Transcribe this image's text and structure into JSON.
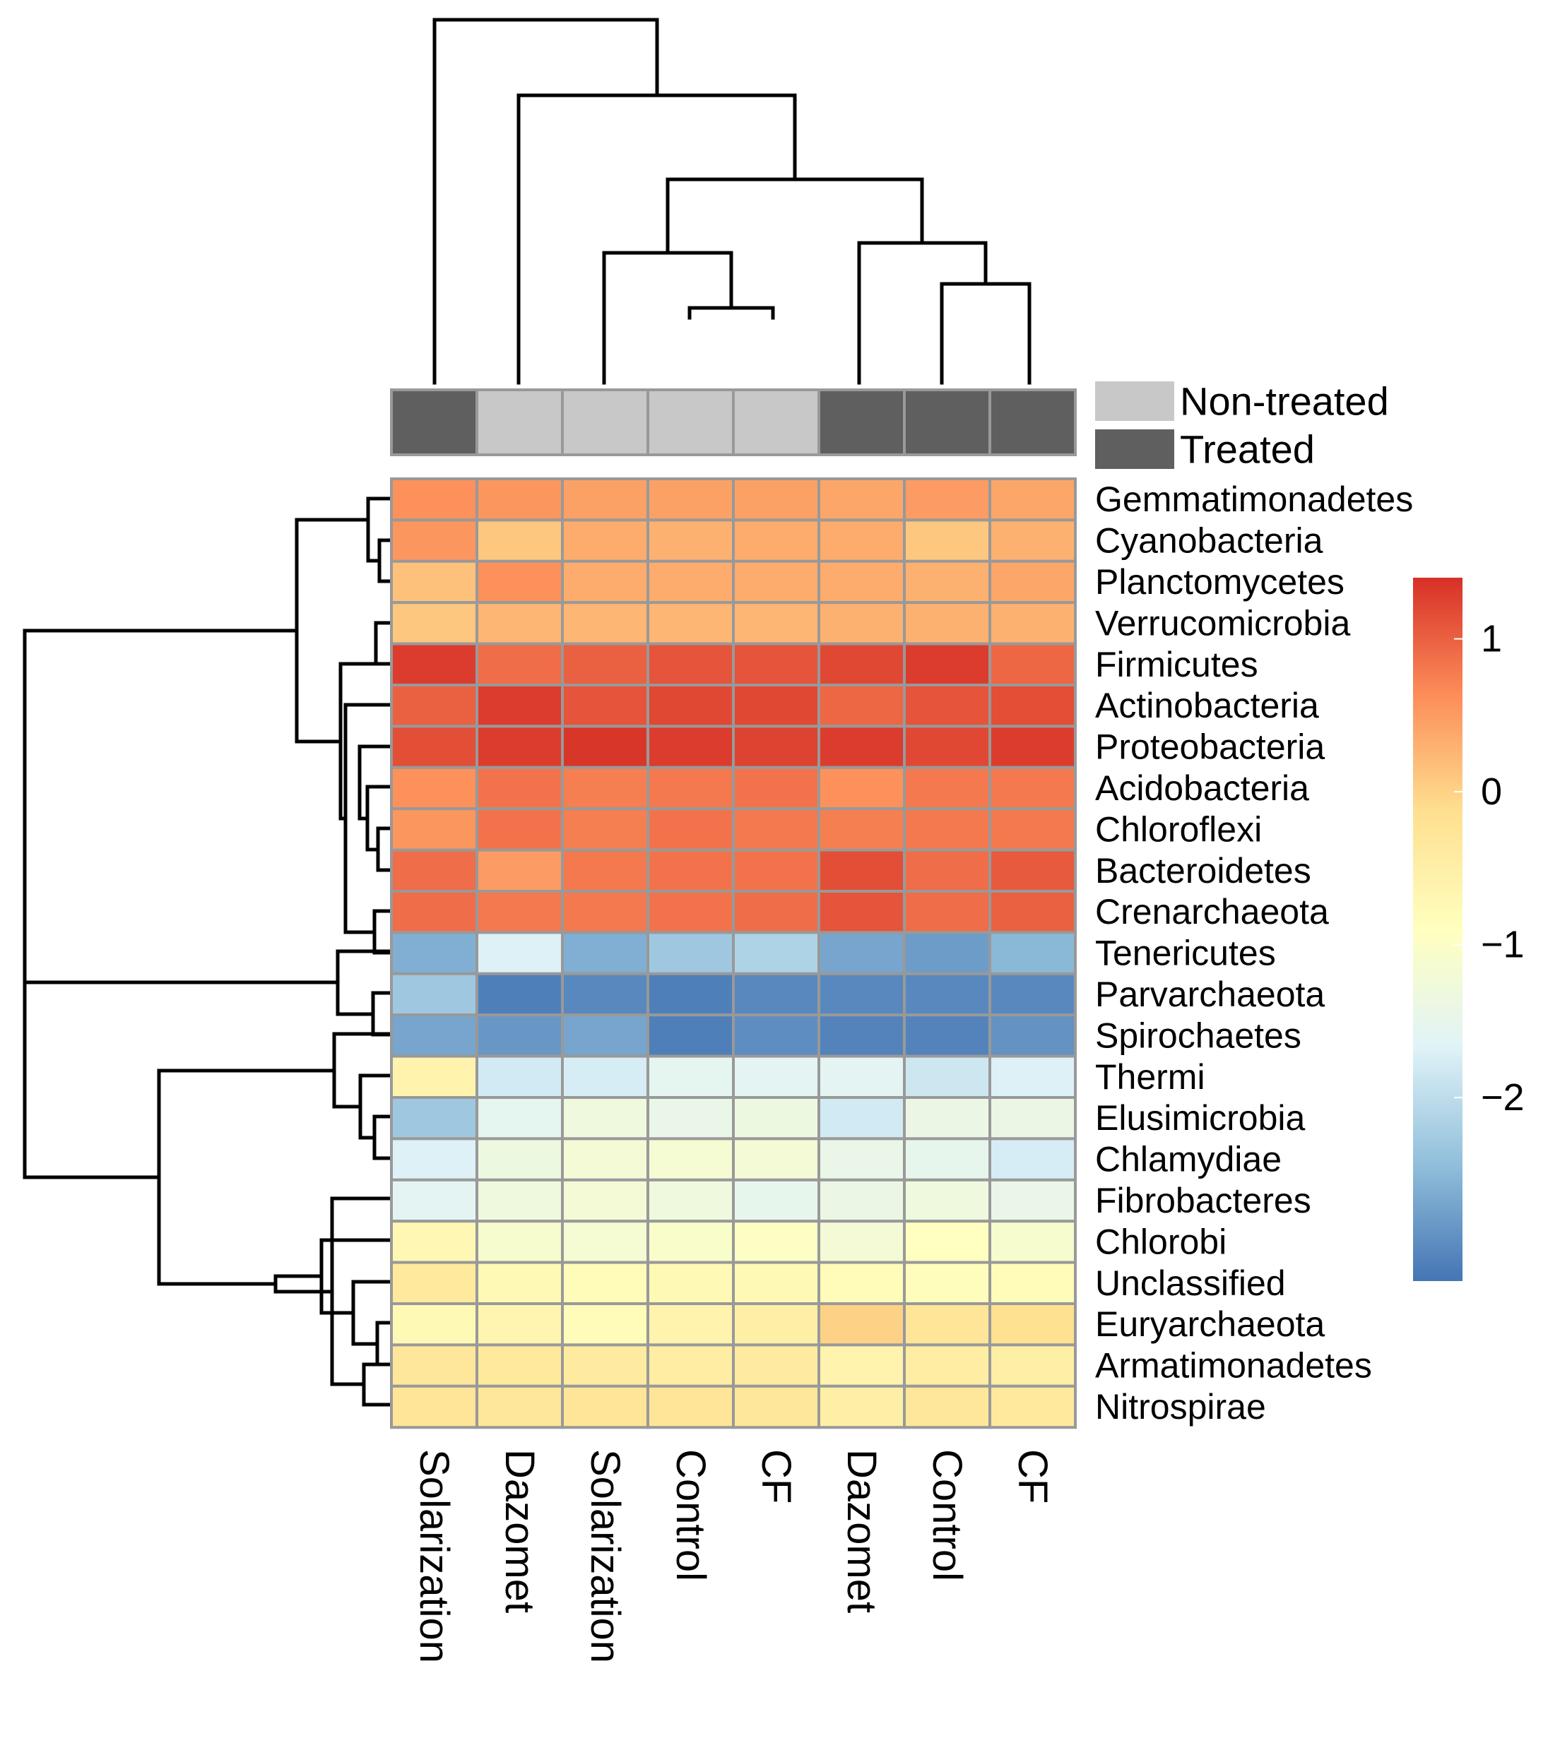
{
  "chart_data": {
    "type": "heatmap",
    "title": "",
    "columns": [
      "Solarization",
      "Dazomet",
      "Solarization",
      "Control",
      "CF",
      "Dazomet",
      "Control",
      "CF"
    ],
    "column_groups": [
      "Treated",
      "Non-treated",
      "Non-treated",
      "Non-treated",
      "Non-treated",
      "Treated",
      "Treated",
      "Treated"
    ],
    "rows": [
      "Gemmatimonadetes",
      "Cyanobacteria",
      "Planctomycetes",
      "Verrucomicrobia",
      "Firmicutes",
      "Actinobacteria",
      "Proteobacteria",
      "Acidobacteria",
      "Chloroflexi",
      "Bacteroidetes",
      "Crenarchaeota",
      "Tenericutes",
      "Parvarchaeota",
      "Spirochaetes",
      "Thermi",
      "Elusimicrobia",
      "Chlamydiae",
      "Fibrobacteres",
      "Chlorobi",
      "Unclassified",
      "Euryarchaeota",
      "Armatimonadetes",
      "Nitrospirae"
    ],
    "values": [
      [
        0.6,
        0.55,
        0.45,
        0.45,
        0.45,
        0.4,
        0.5,
        0.4
      ],
      [
        0.55,
        0.1,
        0.35,
        0.3,
        0.35,
        0.35,
        0.1,
        0.3
      ],
      [
        0.15,
        0.6,
        0.35,
        0.35,
        0.35,
        0.35,
        0.3,
        0.4
      ],
      [
        0.1,
        0.25,
        0.25,
        0.25,
        0.25,
        0.3,
        0.3,
        0.3
      ],
      [
        1.3,
        0.9,
        1.0,
        1.1,
        1.1,
        1.2,
        1.3,
        0.95
      ],
      [
        1.0,
        1.3,
        1.1,
        1.2,
        1.2,
        0.95,
        1.1,
        1.15
      ],
      [
        1.15,
        1.3,
        1.35,
        1.3,
        1.25,
        1.3,
        1.2,
        1.3
      ],
      [
        0.6,
        0.85,
        0.75,
        0.8,
        0.85,
        0.6,
        0.8,
        0.8
      ],
      [
        0.55,
        0.85,
        0.75,
        0.85,
        0.8,
        0.75,
        0.8,
        0.8
      ],
      [
        0.9,
        0.5,
        0.8,
        0.85,
        0.85,
        1.15,
        0.9,
        1.05
      ],
      [
        0.9,
        0.8,
        0.8,
        0.85,
        0.9,
        1.1,
        0.9,
        1.0
      ],
      [
        -2.6,
        -1.7,
        -2.6,
        -2.3,
        -2.15,
        -2.7,
        -2.8,
        -2.5
      ],
      [
        -2.3,
        -3.1,
        -3.0,
        -3.1,
        -3.0,
        -3.0,
        -3.0,
        -3.0
      ],
      [
        -2.7,
        -2.85,
        -2.7,
        -3.1,
        -2.95,
        -3.05,
        -3.05,
        -2.9
      ],
      [
        -0.6,
        -1.8,
        -1.75,
        -1.55,
        -1.6,
        -1.6,
        -1.85,
        -1.7
      ],
      [
        -2.3,
        -1.55,
        -1.3,
        -1.45,
        -1.35,
        -1.8,
        -1.4,
        -1.4
      ],
      [
        -1.7,
        -1.35,
        -1.2,
        -1.15,
        -1.2,
        -1.45,
        -1.5,
        -1.75
      ],
      [
        -1.6,
        -1.3,
        -1.2,
        -1.3,
        -1.5,
        -1.4,
        -1.3,
        -1.45
      ],
      [
        -0.7,
        -1.1,
        -1.15,
        -1.05,
        -0.95,
        -1.2,
        -0.9,
        -1.1
      ],
      [
        -0.35,
        -0.75,
        -0.8,
        -0.75,
        -0.75,
        -0.8,
        -0.85,
        -0.8
      ],
      [
        -0.75,
        -0.65,
        -0.8,
        -0.6,
        -0.5,
        0.0,
        -0.25,
        -0.15
      ],
      [
        -0.3,
        -0.35,
        -0.4,
        -0.45,
        -0.4,
        -0.6,
        -0.45,
        -0.5
      ],
      [
        -0.25,
        -0.3,
        -0.25,
        -0.25,
        -0.3,
        -0.5,
        -0.3,
        -0.35
      ]
    ],
    "legend": {
      "groups": [
        {
          "label": "Non-treated",
          "color": "#c8c8c8"
        },
        {
          "label": "Treated",
          "color": "#5f5f5f"
        }
      ],
      "colorbar_ticks": [
        "1",
        "0",
        "−1",
        "−2"
      ],
      "colorbar_tick_values": [
        1,
        0,
        -1,
        -2
      ],
      "colorbar_range": [
        -3.2,
        1.4
      ],
      "colormap": [
        "#4575b4",
        "#91bfdb",
        "#e0f3f8",
        "#ffffbf",
        "#fee090",
        "#fc8d59",
        "#d73027"
      ]
    },
    "xlabel": "",
    "ylabel": "",
    "grid": true
  }
}
